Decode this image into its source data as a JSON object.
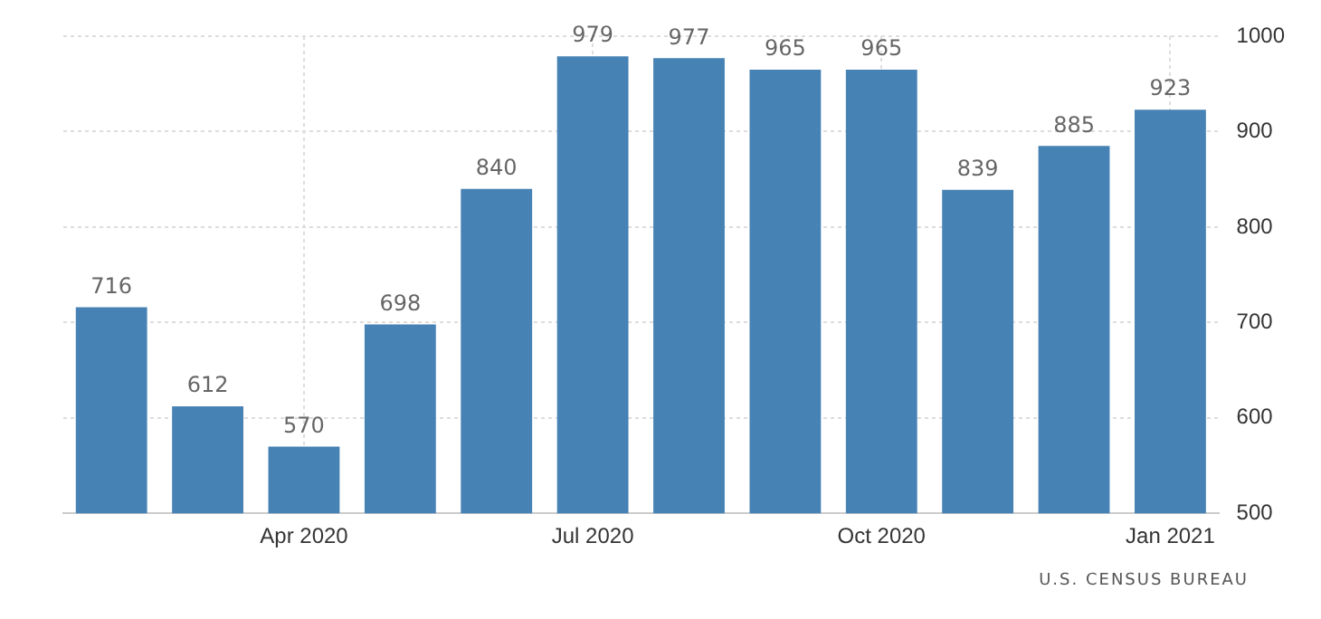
{
  "chart_data": {
    "type": "bar",
    "categories": [
      null,
      null,
      "Apr 2020",
      null,
      null,
      "Jul 2020",
      null,
      null,
      "Oct 2020",
      null,
      null,
      "Jan 2021"
    ],
    "values": [
      716,
      612,
      570,
      698,
      840,
      979,
      977,
      965,
      965,
      839,
      885,
      923
    ],
    "color": "#4682b4",
    "ylim": [
      500,
      1000
    ],
    "yticks": [
      500,
      600,
      700,
      800,
      900,
      1000
    ],
    "grid": true,
    "legend": false,
    "data_labels": true,
    "annotations": [
      "U.S. CENSUS BUREAU"
    ]
  }
}
